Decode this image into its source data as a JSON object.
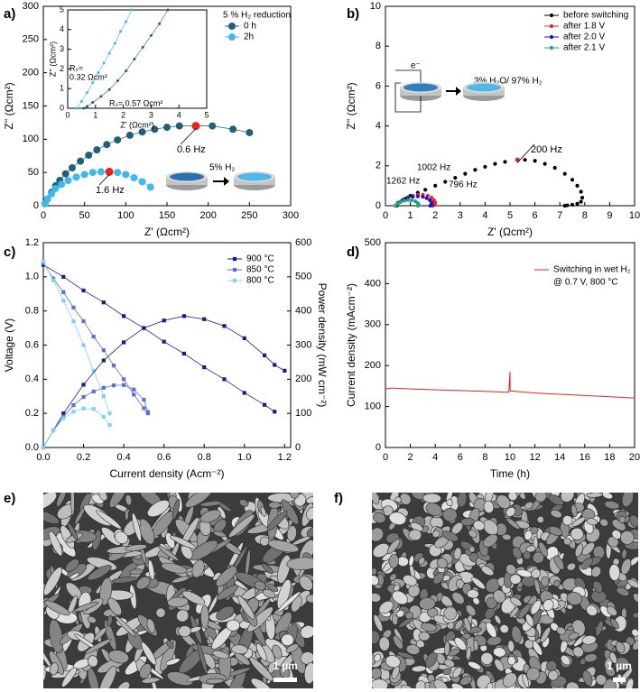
{
  "chart_data": [
    {
      "type": "scatter",
      "panel_label": "a)",
      "xlabel": "Z' (Ωcm²)",
      "ylabel": "Z'' (Ωcm²)",
      "xlim": [
        0,
        300
      ],
      "ylim": [
        0,
        300
      ],
      "xticks": [
        0,
        50,
        100,
        150,
        200,
        250,
        300
      ],
      "yticks": [
        0,
        50,
        100,
        150,
        200,
        250,
        300
      ],
      "legend": "upper right",
      "legend_title": "5 % H₂ reduction",
      "series": [
        {
          "name": "0 h",
          "color": "#1f5f7a",
          "x": [
            2,
            5,
            10,
            15,
            20,
            27,
            35,
            45,
            55,
            65,
            77,
            90,
            105,
            120,
            135,
            150,
            165,
            205,
            230,
            250
          ],
          "values": [
            3,
            10,
            20,
            30,
            38,
            48,
            57,
            67,
            76,
            84,
            92,
            99,
            106,
            111,
            115,
            118,
            120,
            120,
            115,
            110
          ]
        },
        {
          "name": "2h",
          "color": "#3fb8ea",
          "x": [
            2,
            5,
            10,
            15,
            22,
            30,
            40,
            50,
            60,
            70,
            90,
            100,
            110,
            120,
            130
          ],
          "values": [
            3,
            10,
            18,
            26,
            32,
            38,
            43,
            47,
            50,
            51,
            50,
            47,
            42,
            36,
            28
          ]
        }
      ],
      "highlights": [
        {
          "label": "0.6 Hz",
          "x": 185,
          "value": 120,
          "color": "#e8231f"
        },
        {
          "label": "1.6 Hz",
          "x": 80,
          "value": 51,
          "color": "#e8231f"
        }
      ],
      "annotations": [
        "5% H₂"
      ]
    },
    {
      "type": "scatter",
      "xlabel": "Z' (Ωcm²)",
      "ylabel": "Z'' (Ωcm²)",
      "xlim": [
        0,
        5
      ],
      "ylim": [
        0,
        5
      ],
      "xticks": [
        0,
        1,
        2,
        3,
        4,
        5
      ],
      "yticks": [
        0,
        1,
        2,
        3,
        4,
        5
      ],
      "series": [
        {
          "color": "#1f5f7a",
          "x": [
            0.57,
            0.7,
            0.9,
            1.2,
            1.5,
            1.8,
            2.1,
            2.4,
            2.7,
            3.0,
            3.3,
            3.6
          ],
          "values": [
            0,
            0.1,
            0.3,
            0.6,
            0.95,
            1.4,
            1.9,
            2.5,
            3.1,
            3.7,
            4.3,
            5.0
          ]
        },
        {
          "color": "#3fb8ea",
          "x": [
            0.32,
            0.5,
            0.7,
            0.9,
            1.1,
            1.3,
            1.5,
            1.7,
            1.9,
            2.1,
            2.3
          ],
          "values": [
            0,
            0.35,
            0.8,
            1.3,
            1.8,
            2.3,
            2.8,
            3.3,
            3.9,
            4.4,
            5.0
          ]
        }
      ],
      "annotations": [
        "Rₛ=",
        "0.32 Ωcm²",
        "Rₛ= 0.57 Ωcm²"
      ]
    },
    {
      "type": "scatter",
      "panel_label": "b)",
      "xlabel": "Z' (Ωcm²)",
      "ylabel": "Z'' (Ωcm²)",
      "xlim": [
        0,
        10
      ],
      "ylim": [
        0,
        10
      ],
      "xticks": [
        0,
        1,
        2,
        3,
        4,
        5,
        6,
        7,
        8,
        9,
        10
      ],
      "yticks": [
        0,
        2,
        4,
        6,
        8,
        10
      ],
      "legend": "upper right",
      "series": [
        {
          "name": "before switching",
          "color": "#000000",
          "x": [
            0.45,
            0.6,
            0.8,
            1.0,
            1.3,
            1.6,
            2.0,
            2.4,
            2.8,
            3.2,
            3.6,
            4.0,
            4.4,
            4.8,
            5.6,
            6.0,
            6.4,
            6.8,
            7.2,
            7.5,
            7.7,
            7.85,
            7.9,
            7.85,
            7.7,
            7.5,
            7.3,
            7.2
          ],
          "values": [
            0,
            0.2,
            0.35,
            0.5,
            0.65,
            0.8,
            1.0,
            1.2,
            1.4,
            1.6,
            1.8,
            1.95,
            2.1,
            2.2,
            2.3,
            2.25,
            2.1,
            1.9,
            1.6,
            1.3,
            1.0,
            0.7,
            0.4,
            0.2,
            0.1,
            0.05,
            0.02,
            0
          ]
        },
        {
          "name": "after 1.8 V",
          "color": "#e8231f",
          "x": [
            0.4,
            0.5,
            0.7,
            0.9,
            1.1,
            1.3,
            1.5,
            1.7,
            1.85,
            1.95,
            2.0,
            1.98,
            1.9
          ],
          "values": [
            0,
            0.15,
            0.3,
            0.42,
            0.5,
            0.55,
            0.55,
            0.5,
            0.4,
            0.28,
            0.15,
            0.05,
            0
          ]
        },
        {
          "name": "after 2.0 V",
          "color": "#1515c8",
          "x": [
            0.4,
            0.5,
            0.7,
            0.9,
            1.1,
            1.3,
            1.5,
            1.65,
            1.78,
            1.85,
            1.87,
            1.8
          ],
          "values": [
            0,
            0.13,
            0.28,
            0.38,
            0.45,
            0.47,
            0.45,
            0.38,
            0.28,
            0.16,
            0.05,
            0
          ]
        },
        {
          "name": "after 2.1 V",
          "color": "#1aa58a",
          "x": [
            0.4,
            0.5,
            0.6,
            0.75,
            0.9,
            1.05,
            1.2,
            1.3,
            1.33,
            1.3
          ],
          "values": [
            0,
            0.1,
            0.18,
            0.25,
            0.28,
            0.27,
            0.22,
            0.13,
            0.05,
            0
          ]
        }
      ],
      "highlights": [
        {
          "label": "200 Hz",
          "x": 5.3,
          "value": 2.3,
          "color": "#e8231f"
        }
      ],
      "annotations": [
        "1002 Hz",
        "796 Hz",
        "1262 Hz",
        "3% H₂O/ 97% H₂",
        "e⁻"
      ]
    },
    {
      "type": "line",
      "panel_label": "c)",
      "xlabel": "Current density (Acm⁻²)",
      "ylabel": "Voltage (V)",
      "y2label": "Power density (mW cm⁻²)",
      "xlim": [
        0,
        1.23
      ],
      "ylim": [
        0,
        1.2
      ],
      "y2lim": [
        0,
        600
      ],
      "xticks": [
        {
          "value": 0,
          "label": "0.0"
        },
        0.2,
        0.4,
        0.6,
        0.8,
        {
          "value": 1,
          "label": "1.0"
        },
        1.2
      ],
      "yticks": [
        {
          "value": 0,
          "label": "0.0"
        },
        0.2,
        0.4,
        0.6,
        0.8,
        {
          "value": 1,
          "label": "1.0"
        },
        1.2
      ],
      "y2ticks": [
        0,
        100,
        200,
        300,
        400,
        500,
        600
      ],
      "legend": "upper right",
      "markers": "square",
      "series": [
        {
          "name": "900 °C",
          "color": "#1a1a8c",
          "x": [
            0,
            0.1,
            0.2,
            0.3,
            0.4,
            0.5,
            0.6,
            0.7,
            0.8,
            0.9,
            1.0,
            1.1,
            1.15
          ],
          "values": [
            1.07,
            1.0,
            0.92,
            0.85,
            0.77,
            0.7,
            0.62,
            0.55,
            0.47,
            0.4,
            0.32,
            0.25,
            0.21
          ]
        },
        {
          "name": "850 °C",
          "color": "#5b6fd6",
          "x": [
            0,
            0.05,
            0.1,
            0.15,
            0.2,
            0.25,
            0.3,
            0.35,
            0.4,
            0.45,
            0.5,
            0.52
          ],
          "values": [
            1.08,
            0.99,
            0.91,
            0.82,
            0.74,
            0.65,
            0.57,
            0.48,
            0.4,
            0.31,
            0.23,
            0.2
          ]
        },
        {
          "name": "800 °C",
          "color": "#7fd3ef",
          "x": [
            0,
            0.05,
            0.1,
            0.15,
            0.2,
            0.25,
            0.3,
            0.33
          ],
          "values": [
            1.09,
            0.98,
            0.86,
            0.74,
            0.6,
            0.45,
            0.3,
            0.2
          ]
        },
        {
          "axis": "y2",
          "color": "#1a1a8c",
          "x": [
            0,
            0.1,
            0.2,
            0.3,
            0.4,
            0.5,
            0.6,
            0.7,
            0.8,
            0.9,
            1.0,
            1.1,
            1.15,
            1.2
          ],
          "values": [
            0,
            100,
            184,
            255,
            308,
            350,
            372,
            385,
            376,
            356,
            320,
            270,
            242,
            225
          ]
        },
        {
          "axis": "y2",
          "color": "#5b6fd6",
          "x": [
            0,
            0.05,
            0.1,
            0.15,
            0.2,
            0.25,
            0.3,
            0.35,
            0.4,
            0.45,
            0.5,
            0.52
          ],
          "values": [
            0,
            50,
            91,
            124,
            148,
            164,
            175,
            182,
            183,
            170,
            140,
            104
          ]
        },
        {
          "axis": "y2",
          "color": "#7fd3ef",
          "x": [
            0,
            0.05,
            0.1,
            0.15,
            0.2,
            0.25,
            0.3,
            0.33
          ],
          "values": [
            0,
            49,
            86,
            105,
            114,
            113,
            90,
            66
          ]
        }
      ]
    },
    {
      "type": "line",
      "panel_label": "d)",
      "xlabel": "Time (h)",
      "ylabel": "Current density (mAcm⁻²)",
      "xlim": [
        0,
        20
      ],
      "ylim": [
        0,
        500
      ],
      "xticks": [
        0,
        2,
        4,
        6,
        8,
        10,
        12,
        14,
        16,
        18,
        20
      ],
      "yticks": [
        0,
        100,
        200,
        300,
        400,
        500
      ],
      "legend": "upper right",
      "series": [
        {
          "name": "Switching in wet H₂",
          "color": "#e8231f",
          "x": [
            0,
            0.5,
            2,
            4,
            6,
            8,
            9.9,
            10,
            10.01,
            10.1,
            12,
            14,
            16,
            18,
            20
          ],
          "values": [
            143,
            145,
            143,
            141,
            139,
            137,
            135,
            185,
            138,
            138,
            133,
            130,
            127,
            124,
            121
          ]
        }
      ],
      "annotations": [
        "@ 0.7 V, 800 °C"
      ]
    }
  ],
  "micrographs": [
    {
      "panel_label": "e)",
      "scale_bar": "1 µm"
    },
    {
      "panel_label": "f)",
      "scale_bar": "1 µm"
    }
  ]
}
